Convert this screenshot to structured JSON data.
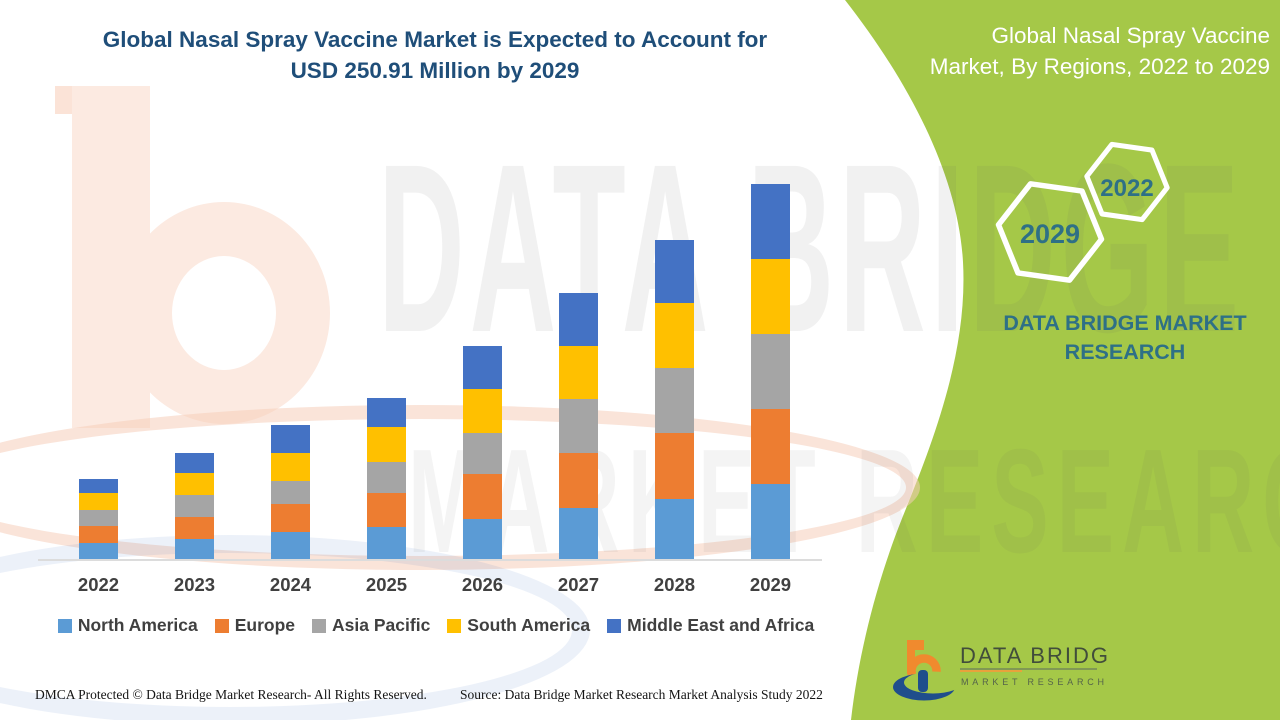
{
  "header": {
    "title_line1": "Global Nasal Spray Vaccine Market is Expected to Account for",
    "title_line2": "USD 250.91 Million by 2029"
  },
  "side_panel": {
    "title_line1": "Global Nasal Spray Vaccine",
    "title_line2": "Market, By Regions, 2022 to 2029",
    "hexagon_large_label": "2029",
    "hexagon_small_label": "2022",
    "brand_line1": "DATA BRIDGE MARKET",
    "brand_line2": "RESEARCH"
  },
  "watermark": {
    "row1": "DATA BRIDGE",
    "row2": "MARKET RESEARCH"
  },
  "chart_data": {
    "type": "bar",
    "stacked": true,
    "title": "Global Nasal Spray Vaccine Market, By Regions, 2022 to 2029",
    "unit": "USD Million",
    "categories": [
      "2022",
      "2023",
      "2024",
      "2025",
      "2026",
      "2027",
      "2028",
      "2029"
    ],
    "series": [
      {
        "name": "North America",
        "color": "#5B9BD5",
        "values": [
          10.5,
          13.4,
          18.3,
          21.2,
          26.6,
          34.4,
          40.2,
          49.9
        ]
      },
      {
        "name": "Europe",
        "color": "#ED7D31",
        "values": [
          11.6,
          14.9,
          18.5,
          23.0,
          30.1,
          36.3,
          43.9,
          50.7
        ]
      },
      {
        "name": "Asia Pacific",
        "color": "#A5A5A5",
        "values": [
          10.8,
          14.5,
          15.6,
          20.5,
          27.5,
          36.2,
          43.5,
          50.0
        ]
      },
      {
        "name": "South America",
        "color": "#FFC000",
        "values": [
          11.2,
          14.7,
          18.9,
          23.4,
          29.4,
          35.5,
          43.5,
          50.4
        ]
      },
      {
        "name": "Middle East and Africa",
        "color": "#4472C4",
        "values": [
          9.4,
          13.4,
          18.3,
          19.4,
          28.8,
          35.4,
          42.5,
          49.91
        ]
      }
    ],
    "totals_estimated": [
      53.5,
      70.9,
      89.6,
      107.5,
      142.4,
      177.8,
      213.6,
      250.91
    ],
    "final_year_total": 250.91,
    "y_axis_visible": false,
    "gridlines": false,
    "legend_position": "bottom"
  },
  "footer": {
    "dmca": "DMCA Protected © Data Bridge Market Research- All Rights Reserved.",
    "source": "Source: Data Bridge Market Research Market Analysis Study 2022",
    "logo_line1": "DATA BRIDGE",
    "logo_line2": "MARKET RESEARCH"
  },
  "colors": {
    "accent_green": "#A5C848",
    "title_navy": "#1F4E79",
    "teal_text": "#2E7086",
    "axis_label": "#404040"
  }
}
